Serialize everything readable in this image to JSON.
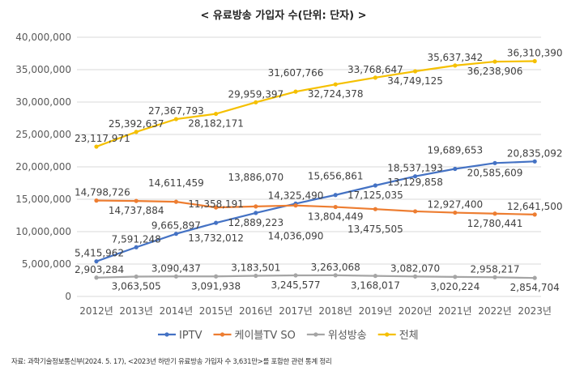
{
  "title": "< 유료방송 가입자 수(단위: 단자) >",
  "note": "자료: 과학기술정보통신부(2024. 5. 17), <2023년 하반기 유료방송 가입자 수 3,631만>를 포함한 관련 통계 정리",
  "chart_data": {
    "type": "line",
    "title": "< 유료방송 가입자 수(단위: 단자) >",
    "categories": [
      "2012년",
      "2013년",
      "2014년",
      "2015년",
      "2016년",
      "2017년",
      "2018년",
      "2019년",
      "2020년",
      "2021년",
      "2022년",
      "2023년"
    ],
    "ylim": [
      0,
      40000000
    ],
    "yticks": [
      0,
      5000000,
      10000000,
      15000000,
      20000000,
      25000000,
      30000000,
      35000000,
      40000000
    ],
    "grid": true,
    "legend": "bottom",
    "series": [
      {
        "name": "IPTV",
        "color": "#4472c4",
        "values": [
          5415962,
          7591248,
          9665897,
          11358191,
          12889223,
          14325490,
          15656861,
          17125035,
          18537193,
          19689653,
          20585609,
          20835092
        ]
      },
      {
        "name": "케이블TV SO",
        "color": "#ed7d31",
        "values": [
          14798726,
          14737884,
          14611459,
          13732012,
          13886070,
          14036090,
          13804449,
          13475505,
          13129858,
          12927400,
          12780441,
          12641500
        ]
      },
      {
        "name": "위성방송",
        "color": "#a5a5a5",
        "values": [
          2903284,
          3063505,
          3090437,
          3091938,
          3183501,
          3245577,
          3263068,
          3168017,
          3082070,
          3020224,
          2958217,
          2854704
        ]
      },
      {
        "name": "전체",
        "color": "#f5c000",
        "values": [
          23117971,
          25392637,
          27367793,
          28182171,
          29959397,
          31607766,
          32724378,
          33768647,
          34749125,
          35637342,
          36238906,
          36310390
        ]
      }
    ]
  }
}
